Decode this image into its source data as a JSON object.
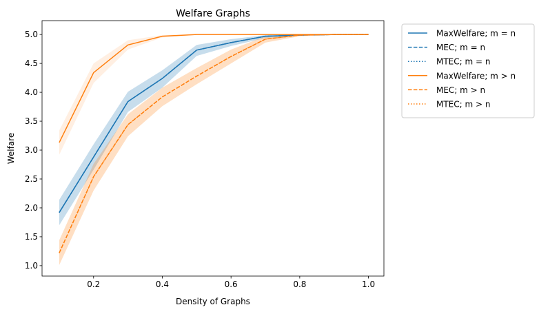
{
  "chart_data": {
    "type": "line",
    "title": "Welfare Graphs",
    "xlabel": "Density of Graphs",
    "ylabel": "Welfare",
    "xlim": [
      0.05,
      1.045
    ],
    "ylim": [
      0.82,
      5.24
    ],
    "xticks": [
      0.2,
      0.4,
      0.6,
      0.8,
      1.0
    ],
    "xtick_labels": [
      "0.2",
      "0.4",
      "0.6",
      "0.8",
      "1.0"
    ],
    "yticks": [
      1.0,
      1.5,
      2.0,
      2.5,
      3.0,
      3.5,
      4.0,
      4.5,
      5.0
    ],
    "ytick_labels": [
      "1.0",
      "1.5",
      "2.0",
      "2.5",
      "3.0",
      "3.5",
      "4.0",
      "4.5",
      "5.0"
    ],
    "grid": false,
    "legend_position": "outside-right-top",
    "x": [
      0.1,
      0.2,
      0.3,
      0.4,
      0.5,
      0.6,
      0.7,
      0.8,
      0.9,
      1.0
    ],
    "series": [
      {
        "name": "MaxWelfare; m = n",
        "color": "#1f77b4",
        "style": "solid",
        "values": [
          1.92,
          2.88,
          3.84,
          4.24,
          4.73,
          4.86,
          4.97,
          4.99,
          5.0,
          5.0
        ],
        "band_lower": [
          1.7,
          2.66,
          3.66,
          4.08,
          4.63,
          4.8,
          4.94,
          4.98,
          4.995,
          5.0
        ],
        "band_upper": [
          2.14,
          3.1,
          4.01,
          4.38,
          4.82,
          4.92,
          4.99,
          5.0,
          5.0,
          5.0
        ]
      },
      {
        "name": "MEC; m = n",
        "color": "#1f77b4",
        "style": "dashed",
        "values": [
          1.92,
          2.88,
          3.84,
          4.24,
          4.73,
          4.86,
          4.97,
          4.99,
          5.0,
          5.0
        ]
      },
      {
        "name": "MTEC; m = n",
        "color": "#1f77b4",
        "style": "dotted",
        "values": [
          1.92,
          2.88,
          3.84,
          4.24,
          4.73,
          4.86,
          4.97,
          4.99,
          5.0,
          5.0
        ]
      },
      {
        "name": "MaxWelfare; m > n",
        "color": "#ff7f0e",
        "style": "solid",
        "values": [
          3.13,
          4.34,
          4.82,
          4.97,
          5.0,
          5.0,
          5.0,
          5.0,
          5.0,
          5.0
        ],
        "band_lower": [
          2.92,
          4.16,
          4.74,
          4.95,
          4.995,
          5.0,
          5.0,
          5.0,
          5.0,
          5.0
        ],
        "band_upper": [
          3.34,
          4.5,
          4.9,
          4.99,
          5.0,
          5.0,
          5.0,
          5.0,
          5.0,
          5.0
        ]
      },
      {
        "name": "MEC; m > n",
        "color": "#ff7f0e",
        "style": "dashed",
        "values": [
          1.22,
          2.54,
          3.44,
          3.92,
          4.28,
          4.62,
          4.92,
          4.99,
          5.0,
          5.0
        ],
        "band_lower": [
          1.01,
          2.3,
          3.24,
          3.76,
          4.14,
          4.5,
          4.86,
          4.97,
          4.99,
          5.0
        ],
        "band_upper": [
          1.44,
          2.76,
          3.62,
          4.08,
          4.42,
          4.74,
          4.97,
          5.0,
          5.0,
          5.0
        ]
      },
      {
        "name": "MTEC; m > n",
        "color": "#ff7f0e",
        "style": "dotted",
        "values": [
          1.22,
          2.54,
          3.44,
          3.92,
          4.28,
          4.62,
          4.92,
          4.99,
          5.0,
          5.0
        ]
      }
    ]
  }
}
